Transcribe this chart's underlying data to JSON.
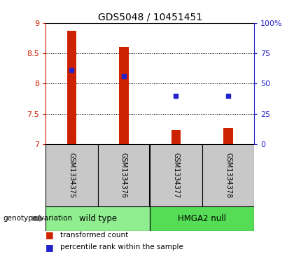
{
  "title": "GDS5048 / 10451451",
  "samples": [
    "GSM1334375",
    "GSM1334376",
    "GSM1334377",
    "GSM1334378"
  ],
  "groups": [
    {
      "name": "wild type",
      "color": "#90EE90",
      "span": [
        0,
        2
      ]
    },
    {
      "name": "HMGA2 null",
      "color": "#55DD55",
      "span": [
        2,
        4
      ]
    }
  ],
  "bar_bottom": 7.0,
  "bar_tops": [
    8.87,
    8.6,
    7.23,
    7.27
  ],
  "blue_y": [
    8.22,
    8.12,
    7.79,
    7.79
  ],
  "ylim": [
    7.0,
    9.0
  ],
  "yticks": [
    7.0,
    7.5,
    8.0,
    8.5,
    9.0
  ],
  "ytick_labels": [
    "7",
    "7.5",
    "8",
    "8.5",
    "9"
  ],
  "right_yticks_pct": [
    0,
    25,
    50,
    75,
    100
  ],
  "right_ytick_labels": [
    "0",
    "25",
    "50",
    "75",
    "100%"
  ],
  "bar_color": "#CC2200",
  "blue_color": "#2222CC",
  "label_transformed": "transformed count",
  "label_percentile": "percentile rank within the sample",
  "genotype_label": "genotype/variation",
  "background_color": "#FFFFFF"
}
